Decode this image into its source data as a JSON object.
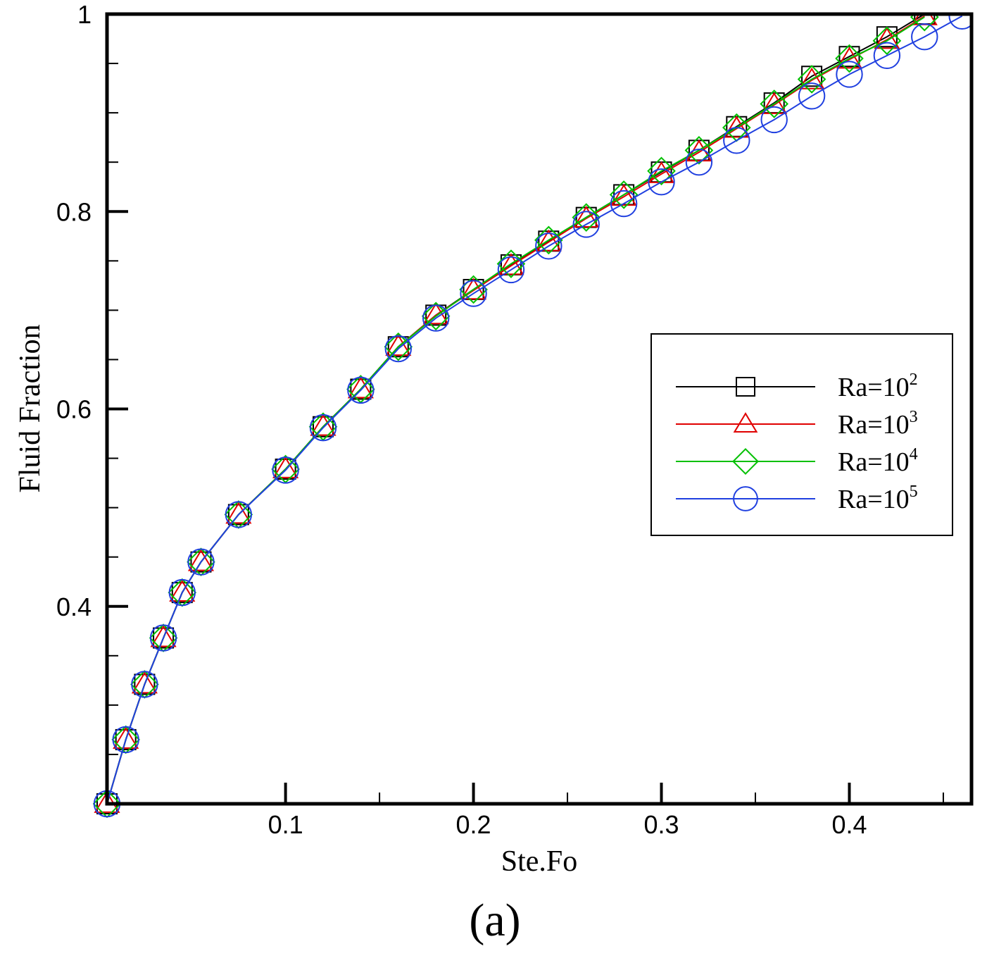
{
  "chart_data": {
    "type": "line",
    "panel_label": "(a)",
    "xlabel": "Ste.Fo",
    "ylabel": "Fluid Fraction",
    "xlim": [
      0.005,
      0.465
    ],
    "ylim": [
      0.2,
      1.0
    ],
    "x_ticks": [
      {
        "value": 0.1,
        "label": "0.1"
      },
      {
        "value": 0.2,
        "label": "0.2"
      },
      {
        "value": 0.3,
        "label": "0.3"
      },
      {
        "value": 0.4,
        "label": "0.4"
      }
    ],
    "y_ticks": [
      {
        "value": 0.4,
        "label": "0.4"
      },
      {
        "value": 0.6,
        "label": "0.6"
      },
      {
        "value": 0.8,
        "label": "0.8"
      },
      {
        "value": 1.0,
        "label": "1"
      }
    ],
    "grid": false,
    "legend_position": "right-middle",
    "series": [
      {
        "name": "Ra=10^2",
        "legend_base": "Ra=10",
        "legend_exp": "2",
        "color": "#000000",
        "marker": "square",
        "x": [
          0.005,
          0.015,
          0.025,
          0.035,
          0.045,
          0.055,
          0.075,
          0.1,
          0.12,
          0.14,
          0.16,
          0.18,
          0.2,
          0.22,
          0.24,
          0.26,
          0.28,
          0.3,
          0.32,
          0.34,
          0.36,
          0.38,
          0.4,
          0.42,
          0.44
        ],
        "y": [
          0.2,
          0.265,
          0.321,
          0.368,
          0.414,
          0.445,
          0.493,
          0.539,
          0.582,
          0.62,
          0.663,
          0.695,
          0.721,
          0.746,
          0.77,
          0.794,
          0.817,
          0.84,
          0.862,
          0.886,
          0.91,
          0.937,
          0.957,
          0.977,
          1.0
        ]
      },
      {
        "name": "Ra=10^3",
        "legend_base": "Ra=10",
        "legend_exp": "3",
        "color": "#e00000",
        "marker": "triangle",
        "x": [
          0.005,
          0.015,
          0.025,
          0.035,
          0.045,
          0.055,
          0.075,
          0.1,
          0.12,
          0.14,
          0.16,
          0.18,
          0.2,
          0.22,
          0.24,
          0.26,
          0.28,
          0.3,
          0.32,
          0.34,
          0.36,
          0.38,
          0.4,
          0.42,
          0.44
        ],
        "y": [
          0.2,
          0.265,
          0.321,
          0.368,
          0.414,
          0.445,
          0.493,
          0.539,
          0.582,
          0.62,
          0.663,
          0.695,
          0.72,
          0.745,
          0.769,
          0.793,
          0.815,
          0.838,
          0.86,
          0.884,
          0.908,
          0.933,
          0.954,
          0.974,
          0.998
        ]
      },
      {
        "name": "Ra=10^4",
        "legend_base": "Ra=10",
        "legend_exp": "4",
        "color": "#00c000",
        "marker": "diamond",
        "x": [
          0.005,
          0.015,
          0.025,
          0.035,
          0.045,
          0.055,
          0.075,
          0.1,
          0.12,
          0.14,
          0.16,
          0.18,
          0.2,
          0.22,
          0.24,
          0.26,
          0.28,
          0.3,
          0.32,
          0.34,
          0.36,
          0.38,
          0.4,
          0.42,
          0.44
        ],
        "y": [
          0.2,
          0.265,
          0.321,
          0.368,
          0.414,
          0.445,
          0.493,
          0.539,
          0.582,
          0.62,
          0.663,
          0.694,
          0.721,
          0.747,
          0.771,
          0.794,
          0.817,
          0.841,
          0.862,
          0.885,
          0.909,
          0.934,
          0.955,
          0.973,
          0.997
        ]
      },
      {
        "name": "Ra=10^5",
        "legend_base": "Ra=10",
        "legend_exp": "5",
        "color": "#2040e0",
        "marker": "circle",
        "x": [
          0.005,
          0.015,
          0.025,
          0.035,
          0.045,
          0.055,
          0.075,
          0.1,
          0.12,
          0.14,
          0.16,
          0.18,
          0.2,
          0.22,
          0.24,
          0.26,
          0.28,
          0.3,
          0.32,
          0.34,
          0.36,
          0.38,
          0.4,
          0.42,
          0.44,
          0.46
        ],
        "y": [
          0.2,
          0.265,
          0.321,
          0.368,
          0.414,
          0.445,
          0.493,
          0.538,
          0.581,
          0.619,
          0.661,
          0.692,
          0.717,
          0.741,
          0.765,
          0.787,
          0.808,
          0.83,
          0.85,
          0.872,
          0.893,
          0.917,
          0.939,
          0.958,
          0.977,
          0.998
        ]
      }
    ]
  }
}
